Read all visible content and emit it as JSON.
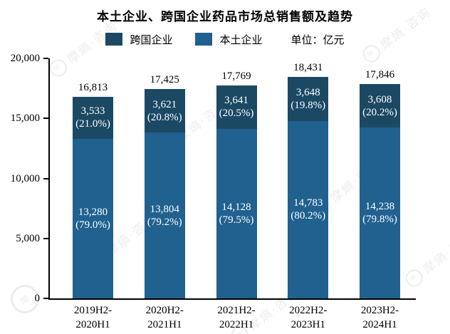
{
  "title": "本土企业、跨国企业药品市场总销售额及趋势",
  "legend": {
    "items": [
      {
        "label": "跨国企业",
        "color": "#1B4964"
      },
      {
        "label": "本土企业",
        "color": "#20618F"
      }
    ],
    "unit_label": "单位：亿元"
  },
  "watermark": {
    "text": "摩熵·咨询"
  },
  "chart_data": {
    "type": "bar",
    "stacked": true,
    "title": "本土企业、跨国企业药品市场总销售额及趋势",
    "unit": "亿元",
    "legend_position": "top",
    "grid": false,
    "ylim": [
      0,
      20000
    ],
    "yticks": [
      0,
      5000,
      10000,
      15000,
      20000
    ],
    "ytick_labels": [
      "0",
      "5,000",
      "10,000",
      "15,000",
      "20,000"
    ],
    "categories": [
      {
        "lines": [
          "2019H2-",
          "2020H1"
        ]
      },
      {
        "lines": [
          "2020H2-",
          "2021H1"
        ]
      },
      {
        "lines": [
          "2021H2-",
          "2022H1"
        ]
      },
      {
        "lines": [
          "2022H2-",
          "2023H1"
        ]
      },
      {
        "lines": [
          "2023H2-",
          "2024H1"
        ]
      }
    ],
    "series": [
      {
        "name": "本土企业",
        "color": "#20618F",
        "values": [
          13280,
          13804,
          14128,
          14783,
          14238
        ],
        "value_labels": [
          "13,280",
          "13,804",
          "14,128",
          "14,783",
          "14,238"
        ],
        "share_labels": [
          "(79.0%)",
          "(79.2%)",
          "(79.5%)",
          "(80.2%)",
          "(79.8%)"
        ]
      },
      {
        "name": "跨国企业",
        "color": "#1B4964",
        "values": [
          3533,
          3621,
          3641,
          3648,
          3608
        ],
        "value_labels": [
          "3,533",
          "3,621",
          "3,641",
          "3,648",
          "3,608"
        ],
        "share_labels": [
          "(21.0%)",
          "(20.8%)",
          "(20.5%)",
          "(19.8%)",
          "(20.2%)"
        ]
      }
    ],
    "totals": [
      16813,
      17425,
      17769,
      18431,
      17846
    ],
    "total_labels": [
      "16,813",
      "17,425",
      "17,769",
      "18,431",
      "17,846"
    ]
  }
}
